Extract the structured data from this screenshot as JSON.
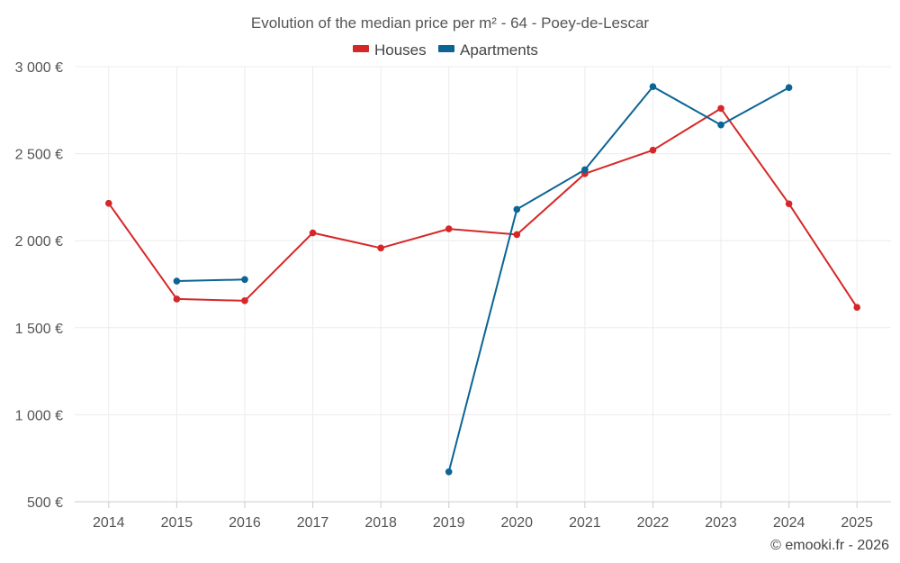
{
  "chart_data": {
    "type": "line",
    "title": "Evolution of the median price per m² - 64 - Poey-de-Lescar",
    "xlabel": "",
    "ylabel": "",
    "x": [
      "2014",
      "2015",
      "2016",
      "2017",
      "2018",
      "2019",
      "2020",
      "2021",
      "2022",
      "2023",
      "2024",
      "2025"
    ],
    "ylim": [
      500,
      3000
    ],
    "yticks": [
      500,
      1000,
      1500,
      2000,
      2500,
      3000
    ],
    "ytick_labels": [
      "500 €",
      "1 000 €",
      "1 500 €",
      "2 000 €",
      "2 500 €",
      "3 000 €"
    ],
    "legend_position": "top-center",
    "grid": true,
    "series": [
      {
        "name": "Houses",
        "color": "#d62728",
        "values": [
          2215,
          1665,
          1655,
          2045,
          1958,
          2068,
          2035,
          2385,
          2520,
          2760,
          2212,
          1617
        ]
      },
      {
        "name": "Apartments",
        "color": "#0b6494",
        "values": [
          null,
          1768,
          1777,
          null,
          null,
          672,
          2180,
          2408,
          2885,
          2665,
          2880,
          null
        ]
      }
    ]
  },
  "credit": "© emooki.fr - 2026"
}
